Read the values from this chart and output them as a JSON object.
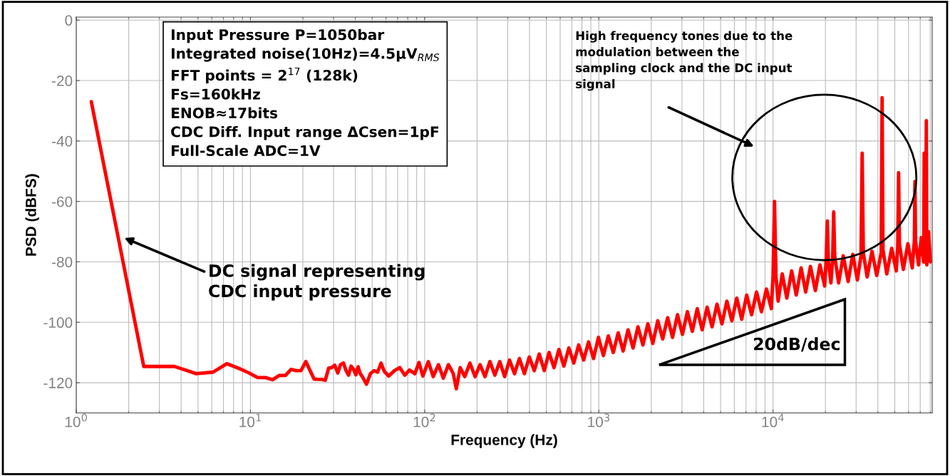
{
  "chart_data": {
    "type": "line",
    "xlabel": "Frequency (Hz)",
    "ylabel": "PSD (dBFS)",
    "log": "x",
    "grid": true,
    "xlim": [
      1,
      82000
    ],
    "ylim": [
      -130,
      1
    ],
    "xticks": [
      {
        "value": 1,
        "label": "10$^{0}$"
      },
      {
        "value": 10,
        "label": "10$^{1}$"
      },
      {
        "value": 100,
        "label": "10$^{2}$"
      },
      {
        "value": 1000,
        "label": "10$^{3}$"
      },
      {
        "value": 10000,
        "label": "10$^{4}$"
      }
    ],
    "yticks": [
      0,
      -20,
      -40,
      -60,
      -80,
      -100,
      -120
    ],
    "line_style": "solid",
    "annotations": [
      "Input Pressure P=1050bar\nIntegrated noise(10Hz)=4.5µV$_{RMS}$\nFFT points = 2$^{17}$ (128k)\nFs=160kHz\nENOB≈17bits\nCDC Diff. Input range ΔCsen=1pF\nFull-Scale ADC=1V",
      "High frequency tones due to the\nmodulation between the\nsampling clock and the DC input\nsignal",
      "DC signal representing\nCDC input pressure",
      "20dB/dec"
    ],
    "series": [
      {
        "color": "#ff0000",
        "x": [
          1.22,
          2.44,
          3.66,
          4.88,
          6.1,
          7.32,
          8.54,
          9.77,
          11,
          12.2,
          13.4,
          14.6,
          15.9,
          17.1,
          18.3,
          19.5,
          20.8,
          22,
          23.2,
          24.4,
          25.6,
          26.9,
          28.1,
          29.3,
          30.5,
          31.7,
          32.9,
          34.2,
          35.4,
          36.6,
          37.8,
          39,
          40.3,
          41.5,
          42.7,
          43.9,
          46.4,
          48.8,
          51.3,
          53.7,
          56.2,
          58.6,
          62.2,
          67.1,
          72,
          76.9,
          81.8,
          87.9,
          92.8,
          97.7,
          105,
          112,
          120,
          128,
          137,
          146,
          152,
          160,
          170,
          182,
          195,
          208,
          222,
          237,
          253,
          270,
          288,
          307,
          328,
          350,
          374,
          399,
          426,
          455,
          486,
          518,
          553,
          590,
          630,
          673,
          718,
          766,
          818,
          873,
          932,
          995,
          1062,
          1134,
          1210,
          1292,
          1379,
          1472,
          1572,
          1678,
          1791,
          1912,
          2041,
          2179,
          2326,
          2483,
          2650,
          2829,
          3020,
          3224,
          3441,
          3673,
          3921,
          4186,
          4468,
          4769,
          5091,
          5435,
          5802,
          6193,
          6611,
          7058,
          7534,
          8042,
          8585,
          9164,
          9782,
          10000,
          10200,
          10400,
          10700,
          11300,
          12000,
          12800,
          13600,
          14500,
          15400,
          16400,
          17500,
          18600,
          19800,
          20200,
          20500,
          20800,
          21500,
          22000,
          22300,
          22600,
          23800,
          25300,
          27000,
          28700,
          30500,
          32000,
          32500,
          33000,
          34700,
          37000,
          39400,
          41800,
          42300,
          42800,
          45000,
          48000,
          51000,
          52000,
          52600,
          53200,
          56000,
          59500,
          63000,
          64800,
          65300,
          65800,
          68500,
          71000,
          73300,
          73800,
          74300,
          75400,
          75900,
          76400,
          78200,
          80000
        ],
        "values": [
          -27,
          -114.6,
          -114.6,
          -117,
          -116.5,
          -113.7,
          -115.2,
          -116.7,
          -118.3,
          -118.3,
          -119,
          -117.6,
          -117.6,
          -115.6,
          -116,
          -116,
          -113,
          -116,
          -118.8,
          -118.9,
          -118.9,
          -119.2,
          -115.2,
          -115,
          -114.2,
          -116.8,
          -114,
          -113.5,
          -116,
          -117.5,
          -114.5,
          -115.5,
          -117.4,
          -114.7,
          -117,
          -118,
          -120.5,
          -117,
          -116,
          -116.5,
          -113.5,
          -116.2,
          -117.8,
          -116,
          -115,
          -117.5,
          -115.8,
          -117,
          -113.3,
          -117.8,
          -113,
          -118,
          -114,
          -118.5,
          -114,
          -117,
          -122,
          -115,
          -118,
          -113.5,
          -118,
          -114,
          -118,
          -113,
          -117.5,
          -113,
          -118,
          -112.5,
          -117,
          -112,
          -117,
          -111.5,
          -116,
          -110.5,
          -116,
          -110,
          -115,
          -109,
          -114.5,
          -108.5,
          -113.5,
          -107.5,
          -112.5,
          -106.5,
          -112,
          -105,
          -111,
          -104.5,
          -110,
          -103.5,
          -109.5,
          -102.5,
          -108.5,
          -101.5,
          -107.5,
          -100.5,
          -107,
          -99.5,
          -105.5,
          -98.5,
          -105,
          -97.5,
          -104,
          -96.5,
          -103,
          -95.5,
          -102.5,
          -95,
          -101.5,
          -94,
          -100.5,
          -93,
          -99.5,
          -92,
          -99,
          -91,
          -97.5,
          -90,
          -96.5,
          -89,
          -95.5,
          -85,
          -60,
          -85,
          -93,
          -84,
          -92,
          -83,
          -91,
          -82,
          -90,
          -81.5,
          -89.5,
          -81,
          -88,
          -79,
          -66.5,
          -80,
          -87,
          -79,
          -63.5,
          -78,
          -87,
          -78,
          -86.5,
          -77.5,
          -86,
          -78,
          -44,
          -77,
          -85,
          -76.5,
          -84.5,
          -77,
          -25.7,
          -76,
          -84,
          -75.5,
          -83,
          -75,
          -50.5,
          -74,
          -82.5,
          -74,
          -82,
          -73,
          -53.4,
          -73,
          -81,
          -72,
          -80,
          -44,
          -80,
          -72,
          -33.3,
          -81,
          -70,
          -80
        ]
      }
    ]
  }
}
